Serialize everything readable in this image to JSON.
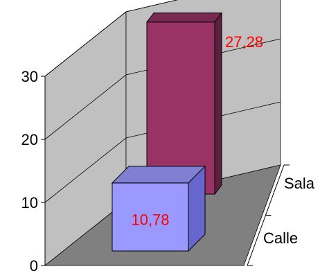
{
  "chart_data": {
    "type": "bar",
    "categories": [
      "Calle",
      "Sala"
    ],
    "values": [
      10.78,
      27.28
    ],
    "data_labels": [
      "10,78",
      "27,28"
    ],
    "value_axis": {
      "ticks": [
        0,
        10,
        20,
        30
      ],
      "tick_labels": [
        "0",
        "10",
        "20",
        "30"
      ],
      "range": [
        0,
        30
      ]
    },
    "title": "",
    "xlabel": "",
    "ylabel": "",
    "grid": true,
    "view": "3d-column",
    "legend": "none",
    "colors": {
      "Calle": {
        "front": "#9999ff",
        "top": "#7f7fd4",
        "side": "#6666cc"
      },
      "Sala": {
        "front": "#993366",
        "top": "#7a2952",
        "side": "#5c1f3d"
      },
      "data_label": "#ff0000",
      "wall": "#c0c0c0",
      "floor": "#808080",
      "gridline": "#000000"
    }
  }
}
